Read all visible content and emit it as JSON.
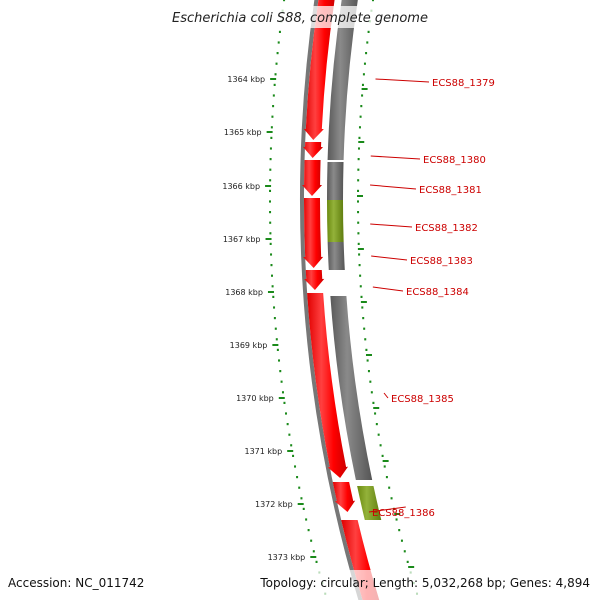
{
  "title": "Escherichia coli S88, complete genome",
  "accession": "Accession: NC_011742",
  "summary": "Topology: circular; Length: 5,032,268 bp; Genes: 4,894",
  "colors": {
    "forward_gene": "#ff0000",
    "reverse_gene": "#6e6e6e",
    "highlight_gene": "#7a9a1c",
    "backbone": "#777777",
    "scale_ticks": "#1a8a1a",
    "label_text": "#cc0000"
  },
  "scale": {
    "unit": "kbp",
    "labels": [
      "1364 kbp",
      "1365 kbp",
      "1366 kbp",
      "1367 kbp",
      "1368 kbp",
      "1369 kbp",
      "1370 kbp",
      "1371 kbp",
      "1372 kbp",
      "1373 kbp"
    ]
  },
  "genes": [
    {
      "label": "ECS88_1379",
      "strand": "reverse",
      "type": "gene"
    },
    {
      "label": "ECS88_1380",
      "strand": "reverse",
      "type": "gene"
    },
    {
      "label": "ECS88_1381",
      "strand": "reverse",
      "type": "gene"
    },
    {
      "label": "ECS88_1382",
      "strand": "reverse",
      "type": "highlight"
    },
    {
      "label": "ECS88_1383",
      "strand": "reverse",
      "type": "gene"
    },
    {
      "label": "ECS88_1384",
      "strand": "reverse",
      "type": "gene"
    },
    {
      "label": "ECS88_1385",
      "strand": "reverse",
      "type": "gene"
    },
    {
      "label": "ECS88_1386",
      "strand": "reverse",
      "type": "highlight"
    }
  ]
}
